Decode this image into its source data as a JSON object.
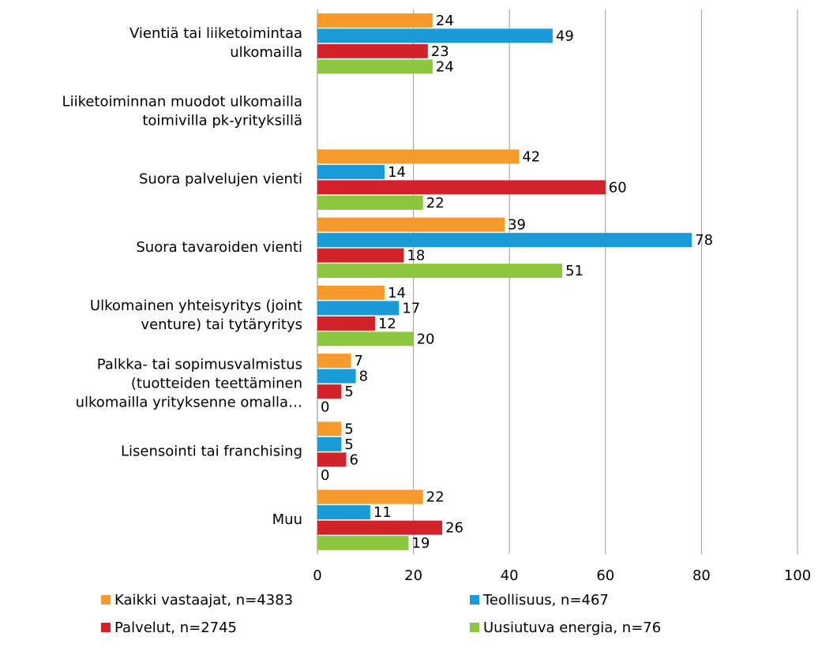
{
  "chart_data": {
    "type": "bar",
    "orientation": "horizontal",
    "categories": [
      "Vientiä tai liiketoimintaa\nulkomailla",
      "Liiketoiminnan muodot ulkomailla\ntoimivilla pk-yrityksillä",
      "Suora palvelujen vienti",
      "Suora tavaroiden vienti",
      "Ulkomainen yhteisyritys (joint\nventure) tai tytäryritys",
      "Palkka- tai sopimusvalmistus\n(tuotteiden teettäminen\nulkomailla yrityksenne omalla…",
      "Lisensointi tai franchising",
      "Muu"
    ],
    "series": [
      {
        "name": "Kaikki vastaajat, n=4383",
        "color": "#f79a2e",
        "values": [
          24,
          null,
          42,
          39,
          14,
          7,
          5,
          22
        ]
      },
      {
        "name": "Teollisuus, n=467",
        "color": "#1a9ad6",
        "values": [
          49,
          null,
          14,
          78,
          17,
          8,
          5,
          11
        ]
      },
      {
        "name": "Palvelut, n=2745",
        "color": "#d2232a",
        "values": [
          23,
          null,
          60,
          18,
          12,
          5,
          6,
          26
        ]
      },
      {
        "name": "Uusiutuva energia, n=76",
        "color": "#8dc63f",
        "values": [
          24,
          null,
          22,
          51,
          20,
          0,
          0,
          19
        ]
      }
    ],
    "xlim": [
      0,
      100
    ],
    "xticks": [
      0,
      20,
      40,
      60,
      80,
      100
    ],
    "grid": true,
    "legend": "bottom"
  }
}
